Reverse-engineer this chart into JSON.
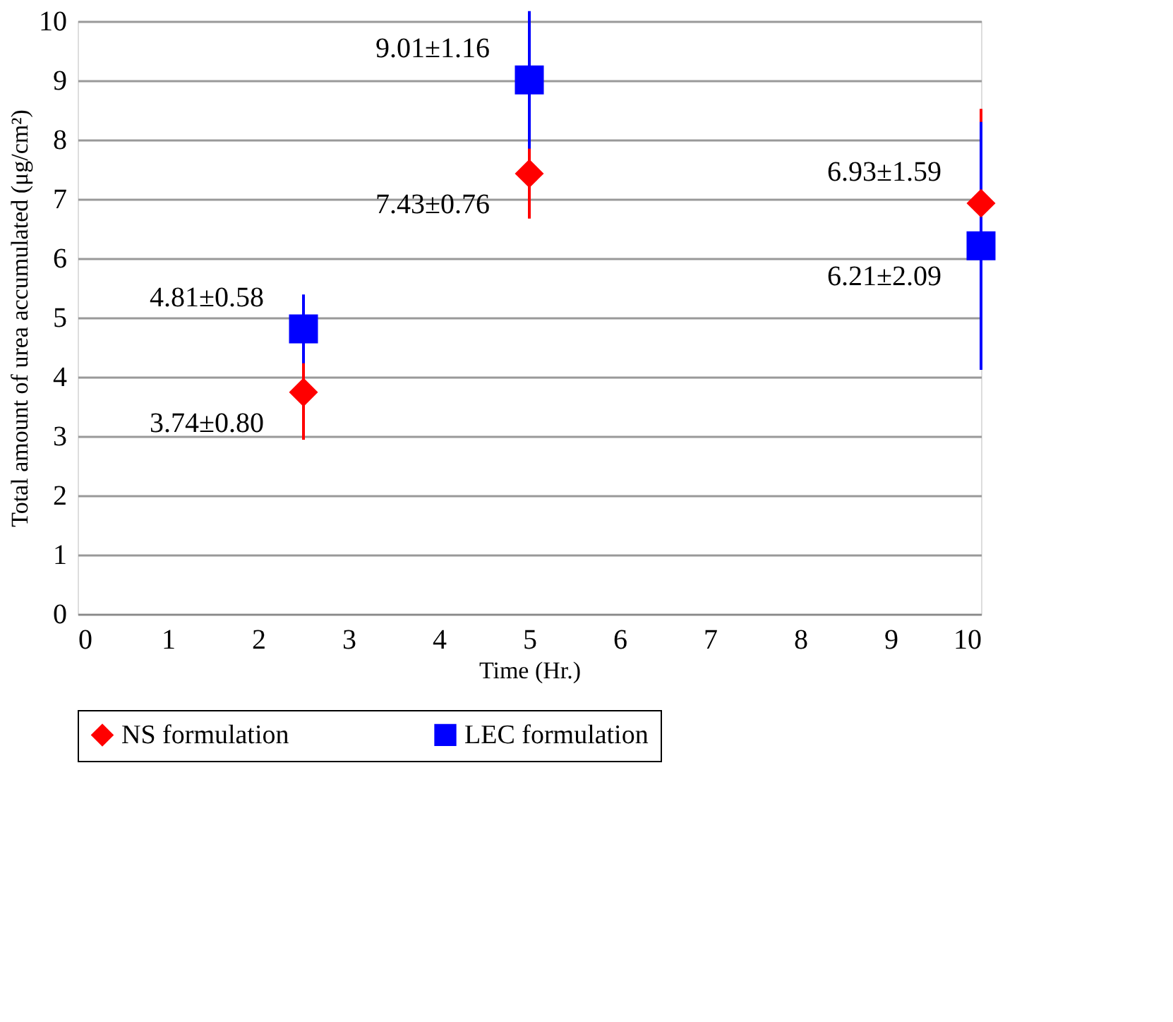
{
  "chart_data": {
    "type": "scatter",
    "xlabel": "Time (Hr.)",
    "ylabel": "Total amount of urea accumulated (μg/cm²)",
    "x": [
      2.5,
      5,
      10
    ],
    "xlim": [
      0,
      10
    ],
    "xticks": [
      0,
      1,
      2,
      3,
      4,
      5,
      6,
      7,
      8,
      9,
      10
    ],
    "ylim": [
      0,
      10
    ],
    "yticks": [
      0,
      1,
      2,
      3,
      4,
      5,
      6,
      7,
      8,
      9,
      10
    ],
    "grid": "y",
    "legend": "bottom",
    "series": [
      {
        "name": "NS formulation",
        "color": "#ff0000",
        "marker": "diamond",
        "values": [
          3.74,
          7.43,
          6.93
        ],
        "errors": [
          0.8,
          0.76,
          1.59
        ],
        "value_labels": [
          "3.74±0.80",
          "7.43±0.76",
          "6.93±1.59"
        ]
      },
      {
        "name": "LEC formulation",
        "color": "#0000ff",
        "marker": "square",
        "values": [
          4.81,
          9.01,
          6.21
        ],
        "errors": [
          0.58,
          1.16,
          2.09
        ],
        "value_labels": [
          "4.81±0.58",
          "9.01±1.16",
          "6.21±2.09"
        ]
      }
    ]
  }
}
